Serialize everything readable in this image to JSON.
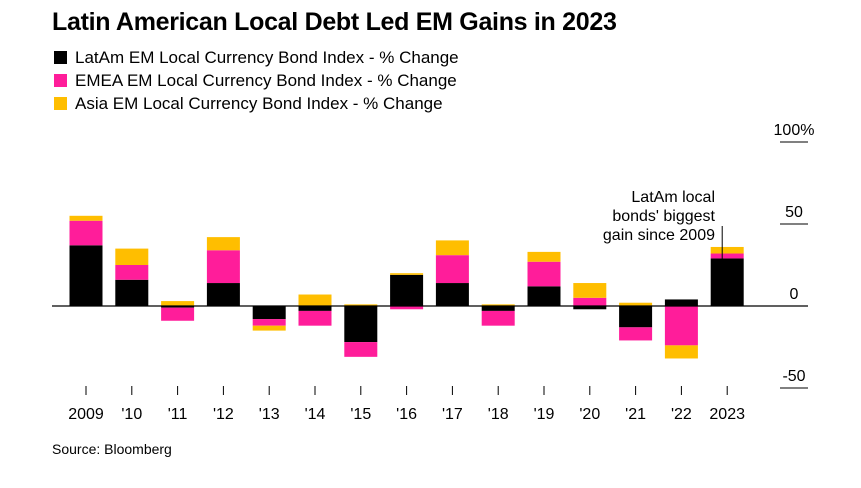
{
  "colors": {
    "latam": "#000000",
    "emea": "#ff1d9a",
    "asia": "#ffbe00",
    "axis": "#000000",
    "text": "#000000"
  },
  "chart_data": {
    "type": "bar",
    "stacking": "stacked",
    "title": "Latin American Local Debt Led EM Gains in 2023",
    "source": "Source: Bloomberg",
    "categories": [
      "2009",
      "'10",
      "'11",
      "'12",
      "'13",
      "'14",
      "'15",
      "'16",
      "'17",
      "'18",
      "'19",
      "'20",
      "'21",
      "'22",
      "2023"
    ],
    "series": [
      {
        "name": "LatAm EM Local Currency Bond Index - % Change",
        "color": "#000000",
        "values": [
          37,
          16,
          -1,
          14,
          -8,
          -3,
          -22,
          19,
          14,
          -3,
          12,
          -2,
          -13,
          4,
          29
        ]
      },
      {
        "name": "EMEA EM Local Currency Bond Index - % Change",
        "color": "#ff1d9a",
        "values": [
          15,
          9,
          -8,
          20,
          -4,
          -9,
          -9,
          -2,
          17,
          -9,
          15,
          5,
          -8,
          -24,
          3
        ]
      },
      {
        "name": "Asia EM Local Currency Bond Index - % Change",
        "color": "#ffbe00",
        "values": [
          3,
          10,
          3,
          8,
          -3,
          7,
          1,
          1,
          9,
          1,
          6,
          9,
          2,
          -8,
          4
        ]
      }
    ],
    "ylim": [
      -50,
      100
    ],
    "yticks": [
      100,
      50,
      0,
      -50
    ],
    "ytick_labels": [
      "100%",
      "50",
      "0",
      "-50"
    ],
    "axis_side": "right",
    "legend_position": "top-left",
    "grid": false,
    "annotation": {
      "lines": [
        "LatAm local",
        "bonds' biggest",
        "gain since 2009"
      ],
      "target_category": "2023"
    }
  }
}
